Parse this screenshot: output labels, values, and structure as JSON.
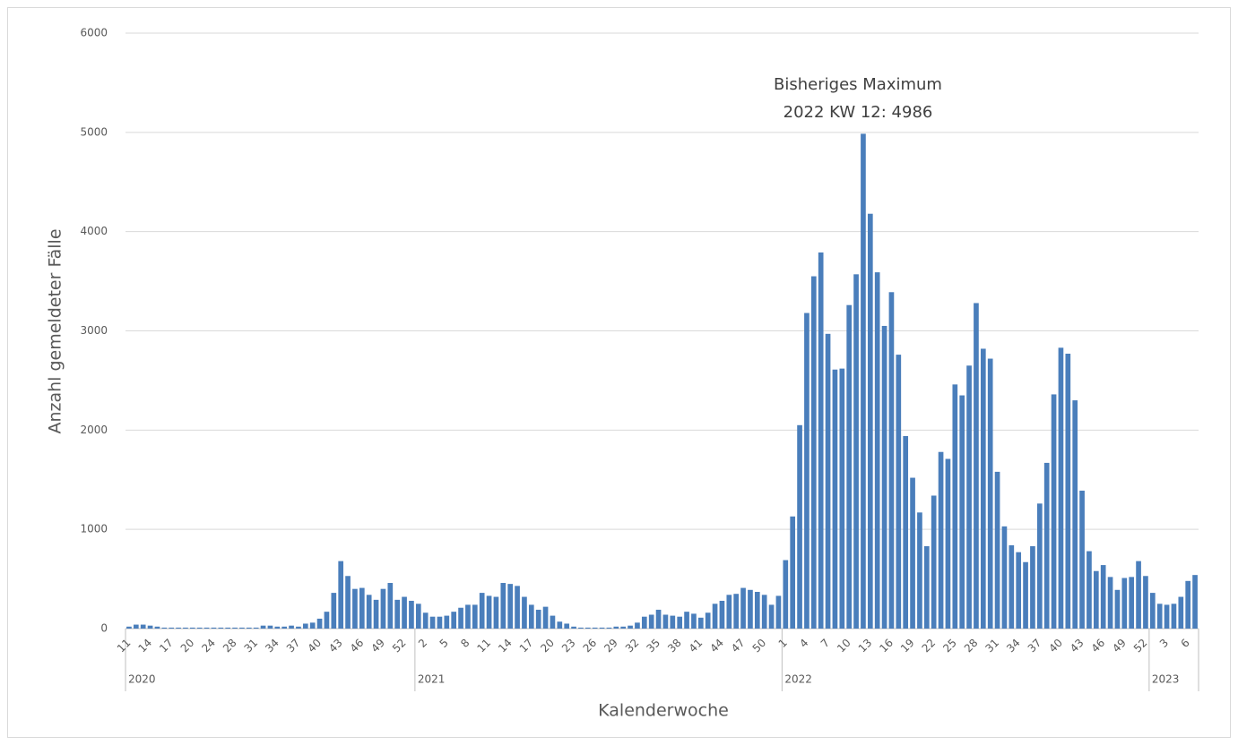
{
  "chart_data": {
    "type": "bar",
    "annotation": [
      "Bisheriges Maximum",
      "2022 KW 12: 4986"
    ],
    "y_label": "Anzahl gemeldeter Fälle",
    "x_label": "Kalenderwoche",
    "color": "#4a7ebb",
    "grid": true,
    "ylim": [
      0,
      6000
    ],
    "yticks": [
      0,
      1000,
      2000,
      3000,
      4000,
      5000,
      6000
    ],
    "groups": [
      {
        "label": "2020",
        "start": 0,
        "count": 41
      },
      {
        "label": "2021",
        "start": 41,
        "count": 52
      },
      {
        "label": "2022",
        "start": 93,
        "count": 52
      },
      {
        "label": "2023",
        "start": 145,
        "count": 7
      }
    ],
    "categories": [
      "11",
      null,
      null,
      "14",
      null,
      null,
      "17",
      null,
      null,
      "20",
      null,
      null,
      "24",
      null,
      null,
      "28",
      null,
      null,
      "31",
      null,
      null,
      "34",
      null,
      null,
      "37",
      null,
      null,
      "40",
      null,
      null,
      "43",
      null,
      null,
      "46",
      null,
      null,
      "49",
      null,
      null,
      "52",
      null,
      null,
      "2",
      null,
      null,
      "5",
      null,
      null,
      "8",
      null,
      null,
      "11",
      null,
      null,
      "14",
      null,
      null,
      "17",
      null,
      null,
      "20",
      null,
      null,
      "23",
      null,
      null,
      "26",
      null,
      null,
      "29",
      null,
      null,
      "32",
      null,
      null,
      "35",
      null,
      null,
      "38",
      null,
      null,
      "41",
      null,
      null,
      "44",
      null,
      null,
      "47",
      null,
      null,
      "50",
      null,
      null,
      "1",
      null,
      null,
      "4",
      null,
      null,
      "7",
      null,
      null,
      "10",
      null,
      null,
      "13",
      null,
      null,
      "16",
      null,
      null,
      "19",
      null,
      null,
      "22",
      null,
      null,
      "25",
      null,
      null,
      "28",
      null,
      null,
      "31",
      null,
      null,
      "34",
      null,
      null,
      "37",
      null,
      null,
      "40",
      null,
      null,
      "43",
      null,
      null,
      "46",
      null,
      null,
      "49",
      null,
      null,
      "52",
      null,
      null,
      "3",
      null,
      null,
      "6",
      null
    ],
    "values": [
      20,
      40,
      40,
      30,
      20,
      10,
      10,
      10,
      10,
      10,
      10,
      10,
      10,
      10,
      10,
      10,
      10,
      10,
      10,
      30,
      30,
      20,
      20,
      30,
      20,
      50,
      60,
      100,
      170,
      360,
      680,
      530,
      400,
      410,
      340,
      290,
      400,
      460,
      290,
      320,
      280,
      250,
      160,
      120,
      120,
      130,
      170,
      210,
      240,
      240,
      360,
      330,
      320,
      460,
      450,
      430,
      320,
      240,
      190,
      220,
      130,
      70,
      50,
      20,
      10,
      10,
      10,
      10,
      10,
      20,
      20,
      30,
      60,
      120,
      140,
      190,
      140,
      130,
      120,
      170,
      150,
      110,
      160,
      250,
      280,
      340,
      350,
      410,
      390,
      370,
      340,
      240,
      330,
      690,
      1130,
      2050,
      3180,
      3550,
      3790,
      2970,
      2610,
      2620,
      3260,
      3570,
      4986,
      4180,
      3590,
      3050,
      3390,
      2760,
      1940,
      1520,
      1170,
      830,
      1340,
      1780,
      1710,
      2460,
      2350,
      2650,
      3280,
      2820,
      2720,
      1580,
      1030,
      840,
      770,
      670,
      830,
      1260,
      1670,
      2360,
      2830,
      2770,
      2300,
      1390,
      780,
      580,
      640,
      520,
      390,
      510,
      520,
      680,
      530,
      360,
      250,
      240,
      250,
      320,
      480,
      540
    ]
  }
}
